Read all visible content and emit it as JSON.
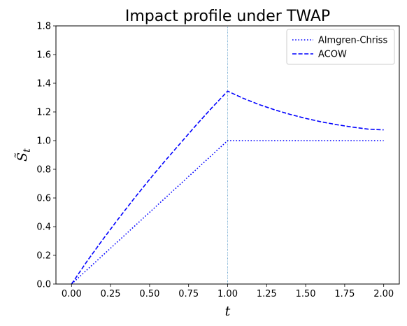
{
  "chart_data": {
    "type": "line",
    "title": "Impact profile under TWAP",
    "xlabel": "t",
    "ylabel": "S̃",
    "ylabel_subscript": "t",
    "xlim": [
      -0.1,
      2.1
    ],
    "ylim": [
      0.0,
      1.8
    ],
    "x_ticks": [
      "0.00",
      "0.25",
      "0.50",
      "0.75",
      "1.00",
      "1.25",
      "1.50",
      "1.75",
      "2.00"
    ],
    "y_ticks": [
      "0.0",
      "0.2",
      "0.4",
      "0.6",
      "0.8",
      "1.0",
      "1.2",
      "1.4",
      "1.6",
      "1.8"
    ],
    "grid": false,
    "legend_position": "top-right",
    "vertical_marker_x": 1.0,
    "series": [
      {
        "name": "Almgren-Chriss",
        "style": "dotted",
        "color": "#0000ff",
        "points": [
          [
            0.0,
            0.0
          ],
          [
            1.0,
            1.0
          ],
          [
            2.0,
            1.0
          ]
        ]
      },
      {
        "name": "ACOW",
        "style": "dashed",
        "color": "#0000ff",
        "points": [
          [
            0.0,
            0.0
          ],
          [
            0.1,
            0.16
          ],
          [
            0.2,
            0.31
          ],
          [
            0.3,
            0.455
          ],
          [
            0.4,
            0.595
          ],
          [
            0.5,
            0.73
          ],
          [
            0.6,
            0.86
          ],
          [
            0.7,
            0.985
          ],
          [
            0.8,
            1.11
          ],
          [
            0.9,
            1.23
          ],
          [
            1.0,
            1.345
          ],
          [
            1.1,
            1.295
          ],
          [
            1.2,
            1.252
          ],
          [
            1.3,
            1.215
          ],
          [
            1.4,
            1.183
          ],
          [
            1.5,
            1.155
          ],
          [
            1.6,
            1.131
          ],
          [
            1.7,
            1.111
          ],
          [
            1.8,
            1.094
          ],
          [
            1.9,
            1.08
          ],
          [
            2.0,
            1.075
          ]
        ]
      }
    ]
  }
}
